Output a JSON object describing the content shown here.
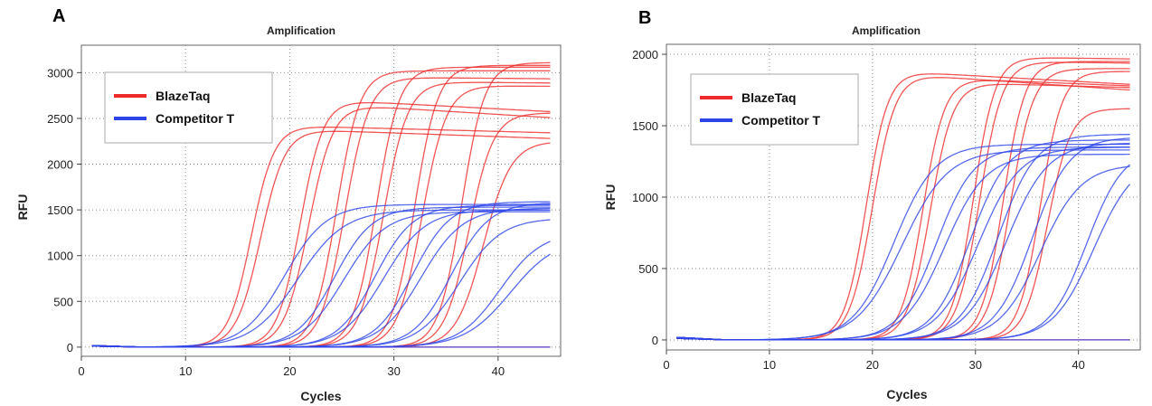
{
  "colors": {
    "series_a": "#ee2a2a",
    "series_b": "#2d45e8",
    "grid": "#888888",
    "frame": "#666666",
    "plot_bg": "#ffffff"
  },
  "chart_data": [
    {
      "panel": "A",
      "type": "line",
      "title": "Amplification",
      "xlabel": "Cycles",
      "ylabel": "RFU",
      "xlim": [
        0,
        46
      ],
      "ylim": [
        -100,
        3300
      ],
      "xticks": [
        0,
        10,
        20,
        30,
        40
      ],
      "yticks": [
        0,
        500,
        1000,
        1500,
        2000,
        2500,
        3000
      ],
      "grid": true,
      "legend_position": "top-left",
      "legend": [
        "BlazeTaq",
        "Competitor T"
      ],
      "series": [
        {
          "name": "BlazeTaq",
          "color": "#ee2a2a",
          "curves": [
            {
              "midpoint": 16.3,
              "plateau": 2420,
              "slope": 0.9,
              "drift": -3
            },
            {
              "midpoint": 17.2,
              "plateau": 2380,
              "slope": 0.85,
              "drift": -4
            },
            {
              "midpoint": 21.0,
              "plateau": 2700,
              "slope": 0.9,
              "drift": -6
            },
            {
              "midpoint": 21.8,
              "plateau": 2650,
              "slope": 0.85,
              "drift": -7
            },
            {
              "midpoint": 24.5,
              "plateau": 3020,
              "slope": 0.9,
              "drift": 0
            },
            {
              "midpoint": 25.3,
              "plateau": 2950,
              "slope": 0.85,
              "drift": -1
            },
            {
              "midpoint": 28.3,
              "plateau": 3060,
              "slope": 0.9,
              "drift": 0
            },
            {
              "midpoint": 29.0,
              "plateau": 2900,
              "slope": 0.85,
              "drift": -1
            },
            {
              "midpoint": 32.0,
              "plateau": 3080,
              "slope": 0.9,
              "drift": 0
            },
            {
              "midpoint": 32.7,
              "plateau": 2860,
              "slope": 0.85,
              "drift": -1
            },
            {
              "midpoint": 36.5,
              "plateau": 3110,
              "slope": 0.9,
              "drift": 0
            },
            {
              "midpoint": 37.2,
              "plateau": 2560,
              "slope": 0.85,
              "drift": 0
            },
            {
              "midpoint": 38.6,
              "plateau": 2250,
              "slope": 0.75,
              "drift": 0
            },
            {
              "midpoint": 60,
              "plateau": 0,
              "slope": 0.8,
              "drift": 0
            }
          ]
        },
        {
          "name": "Competitor T",
          "color": "#2d45e8",
          "curves": [
            {
              "midpoint": 19.5,
              "plateau": 1560,
              "slope": 0.5,
              "drift": 0
            },
            {
              "midpoint": 20.8,
              "plateau": 1500,
              "slope": 0.45,
              "drift": 0
            },
            {
              "midpoint": 24.3,
              "plateau": 1530,
              "slope": 0.55,
              "drift": 0
            },
            {
              "midpoint": 25.2,
              "plateau": 1480,
              "slope": 0.5,
              "drift": 0
            },
            {
              "midpoint": 28.2,
              "plateau": 1550,
              "slope": 0.55,
              "drift": 0
            },
            {
              "midpoint": 29.0,
              "plateau": 1500,
              "slope": 0.5,
              "drift": 0
            },
            {
              "midpoint": 31.8,
              "plateau": 1590,
              "slope": 0.55,
              "drift": 0
            },
            {
              "midpoint": 32.6,
              "plateau": 1520,
              "slope": 0.5,
              "drift": 0
            },
            {
              "midpoint": 35.5,
              "plateau": 1580,
              "slope": 0.55,
              "drift": 0
            },
            {
              "midpoint": 36.3,
              "plateau": 1410,
              "slope": 0.5,
              "drift": 0
            },
            {
              "midpoint": 40.2,
              "plateau": 1260,
              "slope": 0.5,
              "drift": 0
            },
            {
              "midpoint": 41.2,
              "plateau": 1200,
              "slope": 0.45,
              "drift": 0
            },
            {
              "midpoint": 60,
              "plateau": 0,
              "slope": 0.8,
              "drift": 0
            }
          ]
        }
      ]
    },
    {
      "panel": "B",
      "type": "line",
      "title": "Amplification",
      "xlabel": "Cycles",
      "ylabel": "RFU",
      "xlim": [
        0,
        46
      ],
      "ylim": [
        -70,
        2070
      ],
      "xticks": [
        0,
        10,
        20,
        30,
        40
      ],
      "yticks": [
        0,
        500,
        1000,
        1500,
        2000
      ],
      "grid": true,
      "legend_position": "top-left",
      "legend": [
        "BlazeTaq",
        "Competitor T"
      ],
      "series": [
        {
          "name": "BlazeTaq",
          "color": "#ee2a2a",
          "curves": [
            {
              "midpoint": 19.4,
              "plateau": 1880,
              "slope": 0.95,
              "drift": -4
            },
            {
              "midpoint": 20.0,
              "plateau": 1860,
              "slope": 0.9,
              "drift": -5
            },
            {
              "midpoint": 24.9,
              "plateau": 1830,
              "slope": 0.95,
              "drift": -3
            },
            {
              "midpoint": 25.6,
              "plateau": 1800,
              "slope": 0.9,
              "drift": -2
            },
            {
              "midpoint": 29.8,
              "plateau": 1980,
              "slope": 0.95,
              "drift": -1
            },
            {
              "midpoint": 30.4,
              "plateau": 1950,
              "slope": 0.9,
              "drift": -1
            },
            {
              "midpoint": 32.7,
              "plateau": 1950,
              "slope": 0.95,
              "drift": 0
            },
            {
              "midpoint": 33.4,
              "plateau": 1900,
              "slope": 0.9,
              "drift": 0
            },
            {
              "midpoint": 36.3,
              "plateau": 1880,
              "slope": 0.95,
              "drift": 0
            },
            {
              "midpoint": 37.0,
              "plateau": 1620,
              "slope": 0.9,
              "drift": 0
            },
            {
              "midpoint": 60,
              "plateau": 0,
              "slope": 0.8,
              "drift": 0
            }
          ]
        },
        {
          "name": "Competitor T",
          "color": "#2d45e8",
          "curves": [
            {
              "midpoint": 22.1,
              "plateau": 1370,
              "slope": 0.5,
              "drift": 0
            },
            {
              "midpoint": 22.9,
              "plateau": 1330,
              "slope": 0.45,
              "drift": 0
            },
            {
              "midpoint": 26.2,
              "plateau": 1350,
              "slope": 0.55,
              "drift": 0
            },
            {
              "midpoint": 27.0,
              "plateau": 1300,
              "slope": 0.5,
              "drift": 0
            },
            {
              "midpoint": 29.5,
              "plateau": 1400,
              "slope": 0.55,
              "drift": 0
            },
            {
              "midpoint": 30.3,
              "plateau": 1350,
              "slope": 0.5,
              "drift": 0
            },
            {
              "midpoint": 32.2,
              "plateau": 1440,
              "slope": 0.55,
              "drift": 0
            },
            {
              "midpoint": 33.0,
              "plateau": 1380,
              "slope": 0.5,
              "drift": 0
            },
            {
              "midpoint": 35.5,
              "plateau": 1420,
              "slope": 0.55,
              "drift": 0
            },
            {
              "midpoint": 36.3,
              "plateau": 1230,
              "slope": 0.5,
              "drift": 0
            },
            {
              "midpoint": 40.8,
              "plateau": 1350,
              "slope": 0.55,
              "drift": 0
            },
            {
              "midpoint": 41.5,
              "plateau": 1280,
              "slope": 0.5,
              "drift": 0
            },
            {
              "midpoint": 60,
              "plateau": 0,
              "slope": 0.8,
              "drift": 0
            }
          ]
        }
      ]
    }
  ]
}
